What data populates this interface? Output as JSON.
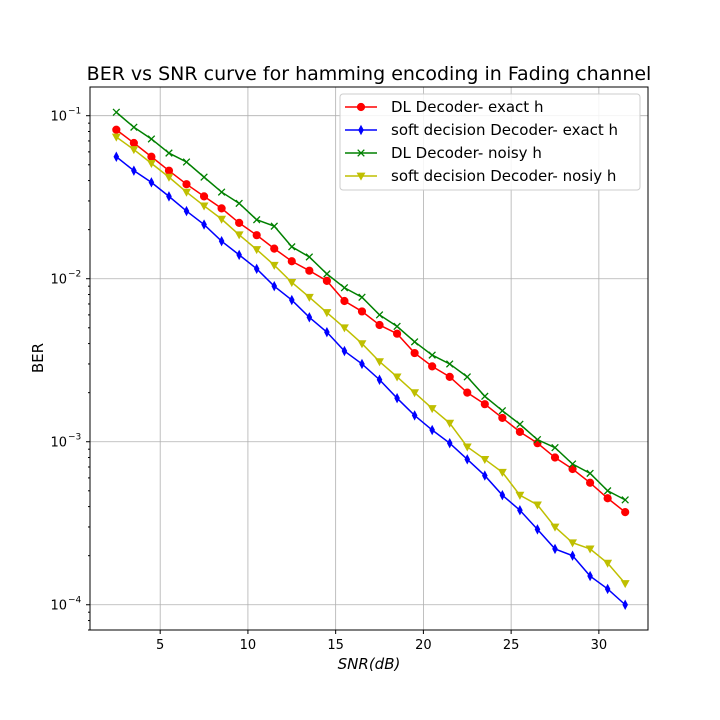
{
  "chart_data": {
    "type": "line",
    "title": "BER vs SNR curve for hamming encoding in Fading channel",
    "xlabel": "SNR(dB)",
    "ylabel": "BER",
    "xscale": "linear",
    "yscale": "log",
    "xlim": [
      1.0,
      32.8
    ],
    "ylim": [
      7e-05,
      0.15
    ],
    "grid": true,
    "legend_position": "upper right",
    "x_ticks": [
      {
        "value": 5,
        "label": "5"
      },
      {
        "value": 10,
        "label": "10"
      },
      {
        "value": 15,
        "label": "15"
      },
      {
        "value": 20,
        "label": "20"
      },
      {
        "value": 25,
        "label": "25"
      },
      {
        "value": 30,
        "label": "30"
      }
    ],
    "y_ticks": [
      {
        "value": 0.1,
        "base": "10",
        "exp": "−1"
      },
      {
        "value": 0.01,
        "base": "10",
        "exp": "−2"
      },
      {
        "value": 0.001,
        "base": "10",
        "exp": "−3"
      },
      {
        "value": 0.0001,
        "base": "10",
        "exp": "−4"
      }
    ],
    "x": [
      2.5,
      3.5,
      4.5,
      5.5,
      6.5,
      7.5,
      8.5,
      9.5,
      10.5,
      11.5,
      12.5,
      13.5,
      14.5,
      15.5,
      16.5,
      17.5,
      18.5,
      19.5,
      20.5,
      21.5,
      22.5,
      23.5,
      24.5,
      25.5,
      26.5,
      27.5,
      28.5,
      29.5,
      30.5,
      31.5
    ],
    "series": [
      {
        "name": "DL Decoder- exact h",
        "color": "#ff0000",
        "marker": "circle",
        "values": [
          0.082,
          0.068,
          0.056,
          0.046,
          0.038,
          0.032,
          0.027,
          0.022,
          0.0185,
          0.0153,
          0.0128,
          0.0112,
          0.0097,
          0.0073,
          0.0063,
          0.0052,
          0.0046,
          0.0035,
          0.0029,
          0.0025,
          0.002,
          0.0017,
          0.0014,
          0.00115,
          0.00098,
          0.0008,
          0.00068,
          0.00056,
          0.00045,
          0.00037
        ]
      },
      {
        "name": "soft decision Decoder- exact h",
        "color": "#0000ff",
        "marker": "thin_diamond",
        "values": [
          0.056,
          0.046,
          0.039,
          0.032,
          0.026,
          0.0215,
          0.017,
          0.014,
          0.0115,
          0.009,
          0.0074,
          0.0058,
          0.0047,
          0.0036,
          0.003,
          0.0024,
          0.00185,
          0.00145,
          0.00118,
          0.00098,
          0.00078,
          0.00062,
          0.00047,
          0.00038,
          0.00029,
          0.00022,
          0.0002,
          0.00015,
          0.000125,
          0.0001
        ]
      },
      {
        "name": "DL Decoder- noisy h",
        "color": "#008000",
        "marker": "x",
        "values": [
          0.105,
          0.085,
          0.072,
          0.059,
          0.052,
          0.042,
          0.034,
          0.029,
          0.023,
          0.021,
          0.0157,
          0.0136,
          0.0107,
          0.0088,
          0.0077,
          0.006,
          0.0051,
          0.0041,
          0.0034,
          0.003,
          0.0025,
          0.0019,
          0.00155,
          0.00128,
          0.00103,
          0.00092,
          0.00073,
          0.00064,
          0.0005,
          0.00044
        ]
      },
      {
        "name": "soft decision Decoder- nosiy h",
        "color": "#bfbf00",
        "marker": "triangle_down",
        "values": [
          0.074,
          0.062,
          0.051,
          0.042,
          0.034,
          0.028,
          0.0232,
          0.0186,
          0.0151,
          0.0121,
          0.0095,
          0.0077,
          0.0062,
          0.005,
          0.004,
          0.0031,
          0.0025,
          0.002,
          0.0016,
          0.0013,
          0.00093,
          0.00078,
          0.00065,
          0.00047,
          0.00041,
          0.0003,
          0.00024,
          0.00022,
          0.00018,
          0.000135
        ]
      }
    ]
  }
}
